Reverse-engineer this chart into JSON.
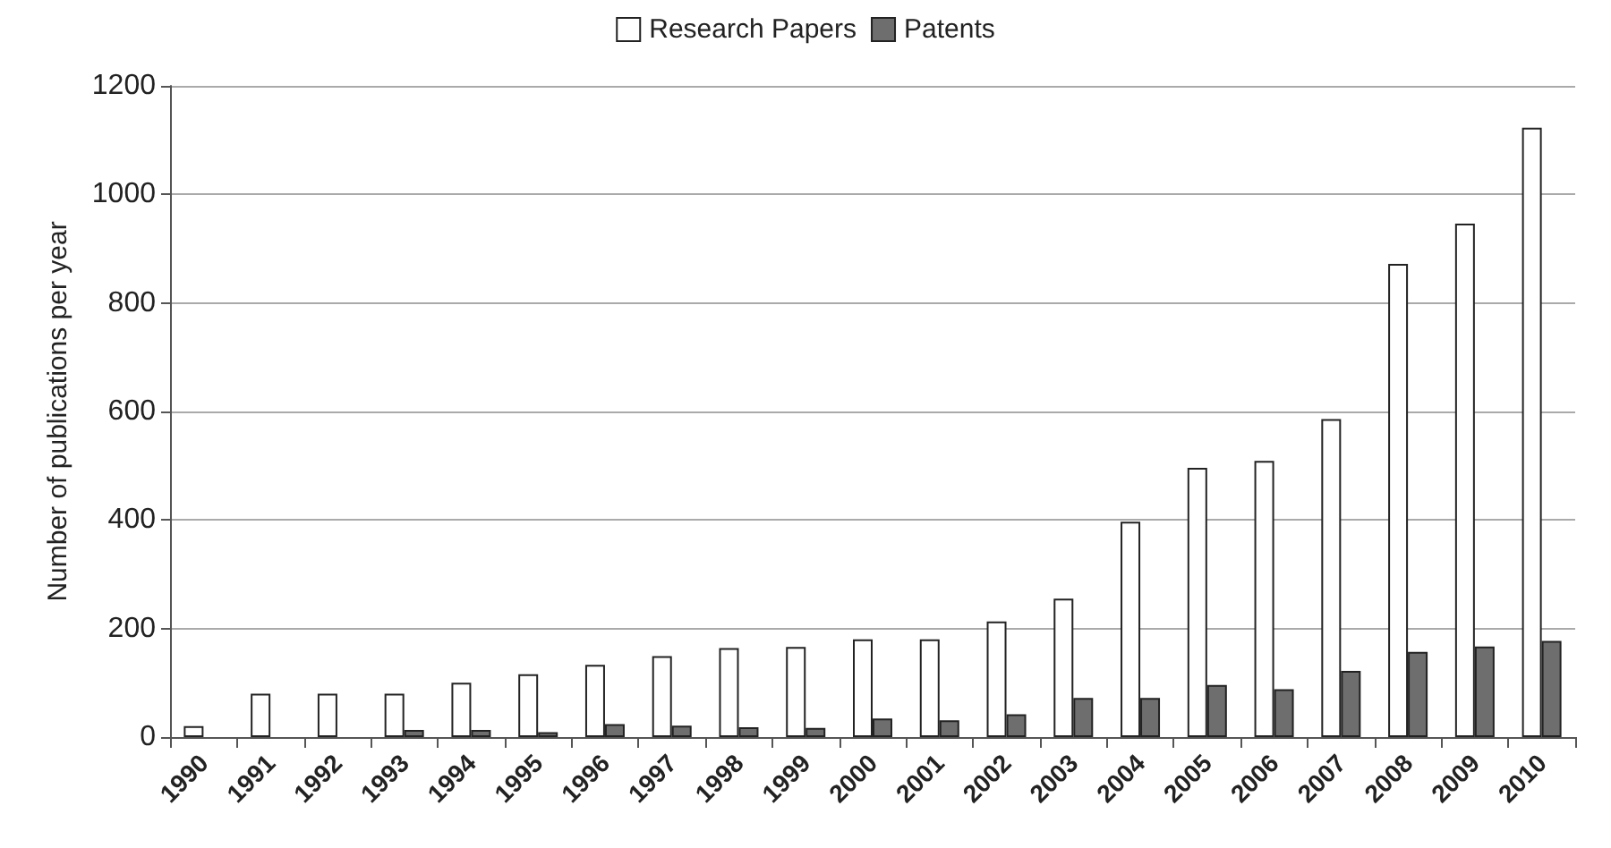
{
  "chart_data": {
    "type": "bar",
    "ylabel": "Number of publications per year",
    "categories": [
      "1990",
      "1991",
      "1992",
      "1993",
      "1994",
      "1995",
      "1996",
      "1997",
      "1998",
      "1999",
      "2000",
      "2001",
      "2002",
      "2003",
      "2004",
      "2005",
      "2006",
      "2007",
      "2008",
      "2009",
      "2010"
    ],
    "series": [
      {
        "name": "Research Papers",
        "color": "#ffffff",
        "values": [
          20,
          80,
          80,
          80,
          100,
          116,
          133,
          149,
          164,
          166,
          180,
          180,
          213,
          255,
          397,
          496,
          509,
          586,
          872,
          946,
          1123
        ]
      },
      {
        "name": "Patents",
        "color": "#6e6e6e",
        "values": [
          null,
          null,
          null,
          13,
          13,
          9,
          24,
          21,
          18,
          17,
          34,
          31,
          42,
          72,
          72,
          96,
          88,
          122,
          157,
          167,
          177
        ]
      }
    ],
    "ylim": [
      0,
      1200
    ],
    "yticks": [
      0,
      200,
      400,
      600,
      800,
      1000,
      1200
    ],
    "grid": "y",
    "legend": "top"
  }
}
